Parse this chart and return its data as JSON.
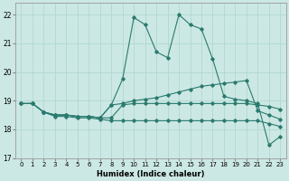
{
  "xlabel": "Humidex (Indice chaleur)",
  "xlim": [
    -0.5,
    23.5
  ],
  "ylim": [
    17,
    22.4
  ],
  "yticks": [
    17,
    18,
    19,
    20,
    21,
    22
  ],
  "xticks": [
    0,
    1,
    2,
    3,
    4,
    5,
    6,
    7,
    8,
    9,
    10,
    11,
    12,
    13,
    14,
    15,
    16,
    17,
    18,
    19,
    20,
    21,
    22,
    23
  ],
  "bg_color": "#cce8e4",
  "line_color": "#2a7a6e",
  "grid_color": "#b0d8d2",
  "lines": [
    {
      "x": [
        0,
        1,
        2,
        3,
        4,
        5,
        6,
        7,
        8,
        9,
        10,
        11,
        12,
        13,
        14,
        15,
        16,
        17,
        18,
        19,
        20,
        21,
        22,
        23
      ],
      "y": [
        18.9,
        18.9,
        18.6,
        18.45,
        18.45,
        18.4,
        18.4,
        18.35,
        18.3,
        18.3,
        18.3,
        18.3,
        18.3,
        18.3,
        18.3,
        18.3,
        18.3,
        18.3,
        18.3,
        18.3,
        18.3,
        18.3,
        18.2,
        18.1
      ]
    },
    {
      "x": [
        2,
        3,
        4,
        5,
        6,
        7,
        8,
        9,
        10,
        11,
        12,
        13,
        14,
        15,
        16,
        17,
        18,
        19,
        20,
        21,
        22,
        23
      ],
      "y": [
        18.6,
        18.5,
        18.5,
        18.45,
        18.45,
        18.4,
        18.4,
        18.85,
        18.9,
        18.9,
        18.9,
        18.9,
        18.9,
        18.9,
        18.9,
        18.9,
        18.9,
        18.9,
        18.9,
        18.85,
        18.8,
        18.7
      ]
    },
    {
      "x": [
        0,
        1,
        2,
        3,
        4,
        5,
        6,
        7,
        8,
        9,
        10,
        11,
        12,
        13,
        14,
        15,
        16,
        17,
        18,
        19,
        20,
        21,
        22,
        23
      ],
      "y": [
        18.9,
        18.9,
        18.6,
        18.5,
        18.5,
        18.45,
        18.45,
        18.4,
        18.85,
        18.9,
        19.0,
        19.05,
        19.1,
        19.2,
        19.3,
        19.4,
        19.5,
        19.55,
        19.6,
        19.65,
        19.7,
        18.65,
        18.5,
        18.35
      ]
    },
    {
      "x": [
        0,
        1,
        2,
        3,
        4,
        5,
        6,
        7,
        8,
        9,
        10,
        11,
        12,
        13,
        14,
        15,
        16,
        17,
        18,
        19,
        20,
        21,
        22,
        23
      ],
      "y": [
        18.9,
        18.9,
        18.6,
        18.5,
        18.5,
        18.45,
        18.45,
        18.4,
        18.85,
        19.75,
        21.9,
        21.65,
        20.7,
        20.5,
        22.0,
        21.65,
        21.5,
        20.45,
        19.15,
        19.05,
        19.0,
        18.9,
        17.45,
        17.75
      ]
    }
  ]
}
